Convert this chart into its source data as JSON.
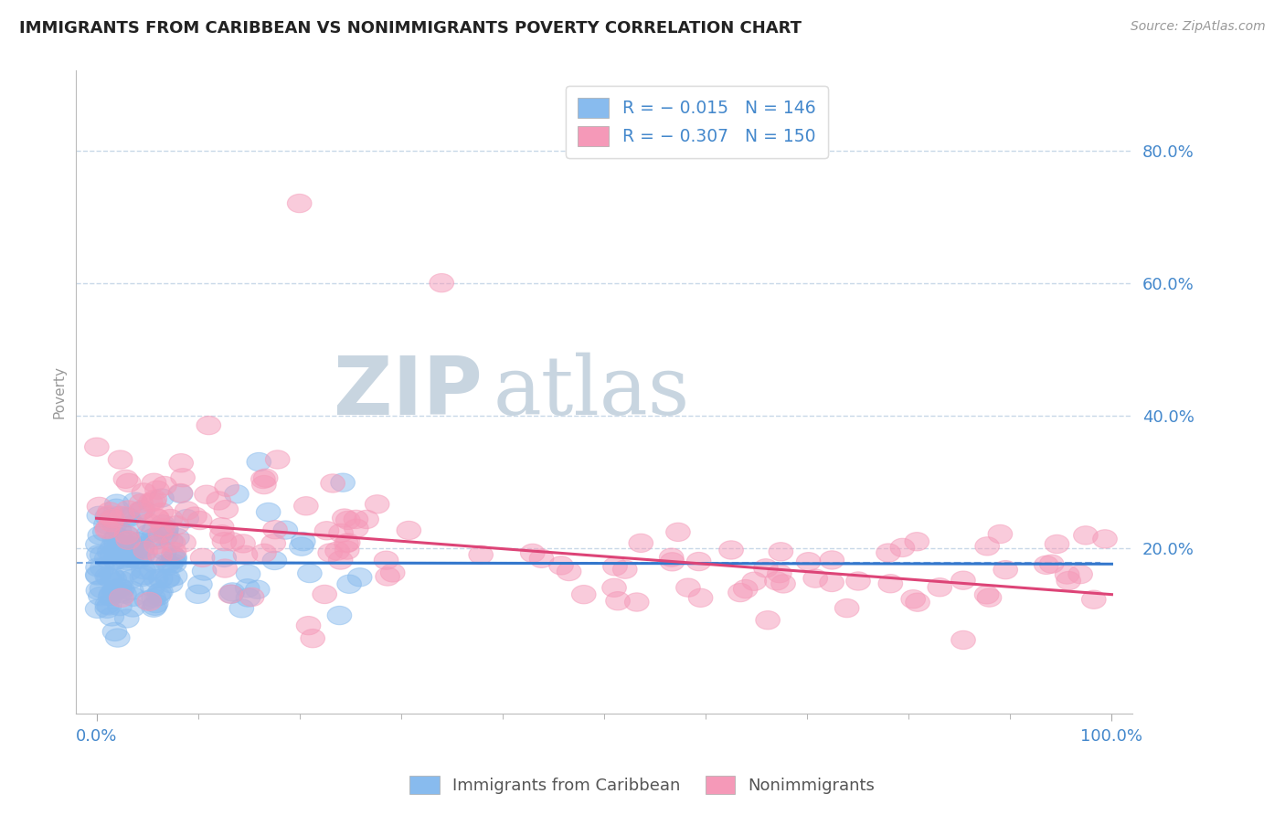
{
  "title": "IMMIGRANTS FROM CARIBBEAN VS NONIMMIGRANTS POVERTY CORRELATION CHART",
  "source_text": "Source: ZipAtlas.com",
  "ylabel": "Poverty",
  "x_tick_labels": [
    "0.0%",
    "100.0%"
  ],
  "y_tick_labels": [
    "80.0%",
    "60.0%",
    "40.0%",
    "20.0%"
  ],
  "y_tick_values": [
    0.8,
    0.6,
    0.4,
    0.2
  ],
  "x_lim": [
    -0.02,
    1.02
  ],
  "y_lim": [
    -0.05,
    0.92
  ],
  "dashed_hline": 0.178,
  "legend_bottom": [
    "Immigrants from Caribbean",
    "Nonimmigrants"
  ],
  "blue_color": "#88bbee",
  "pink_color": "#f599b8",
  "blue_line_color": "#3377cc",
  "pink_line_color": "#dd4477",
  "watermark_zip_color": "#c8d5e0",
  "watermark_atlas_color": "#c8d5e0",
  "title_fontsize": 13,
  "axis_label_color": "#4488cc",
  "grid_color": "#c8d8e8",
  "background_color": "#ffffff",
  "blue_N": 146,
  "pink_N": 150,
  "blue_intercept": 0.178,
  "blue_slope": -0.002,
  "pink_intercept": 0.245,
  "pink_slope": -0.115
}
